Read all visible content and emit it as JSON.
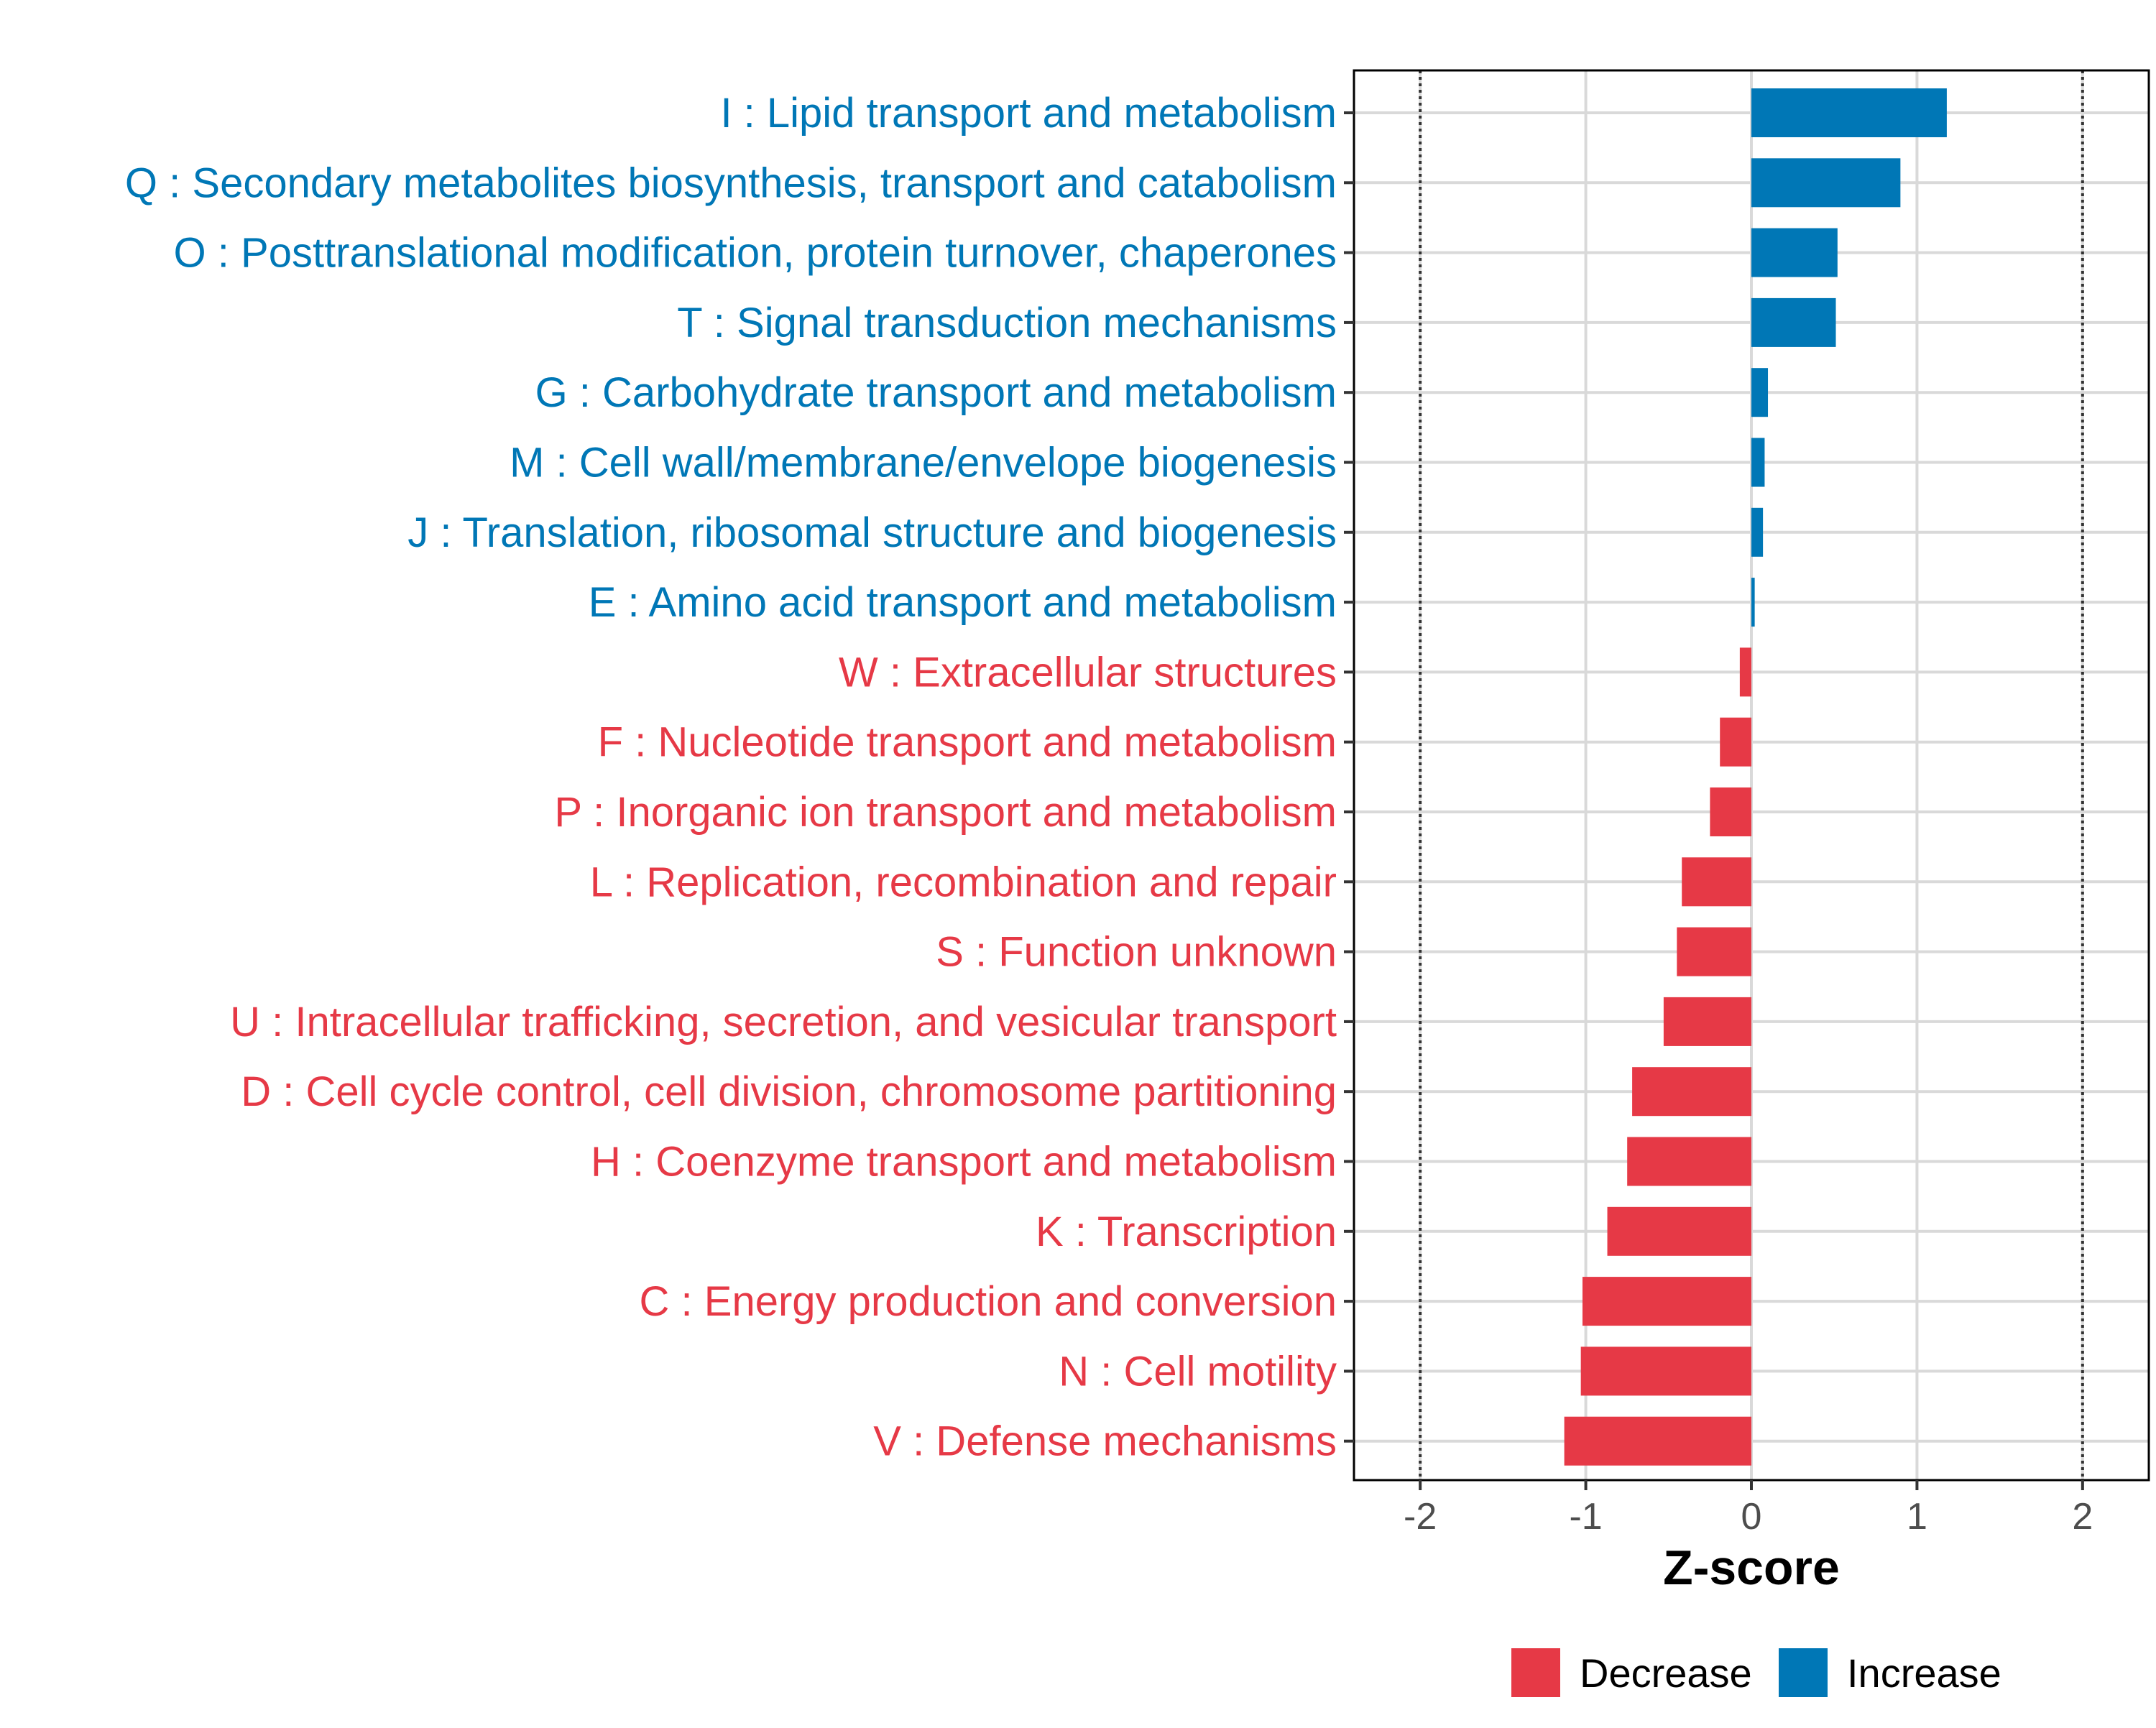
{
  "chart_data": {
    "type": "bar",
    "orientation": "horizontal",
    "xlabel": "Z-score",
    "xlim": [
      -2.4,
      2.4
    ],
    "xticks": [
      -2,
      -1,
      0,
      1,
      2
    ],
    "xtick_labels": [
      "-2",
      "-1",
      "0",
      "1",
      "2"
    ],
    "reference_lines": [
      -2,
      2
    ],
    "grid": true,
    "legend_position": "bottom-right",
    "legend": [
      {
        "name": "Decrease",
        "color": "#E63946"
      },
      {
        "name": "Increase",
        "color": "#0077B6"
      }
    ],
    "categories": [
      "I : Lipid transport and metabolism",
      "Q : Secondary metabolites biosynthesis, transport and catabolism",
      "O : Posttranslational modification, protein turnover, chaperones",
      "T : Signal transduction mechanisms",
      "G : Carbohydrate transport and metabolism",
      "M : Cell wall/membrane/envelope biogenesis",
      "J : Translation, ribosomal structure and biogenesis",
      "E : Amino acid transport and metabolism",
      "W : Extracellular structures",
      "F : Nucleotide transport and metabolism",
      "P : Inorganic ion transport and metabolism",
      "L : Replication, recombination and repair",
      "S : Function unknown",
      "U : Intracellular trafficking, secretion, and vesicular transport",
      "D : Cell cycle control, cell division, chromosome partitioning",
      "H : Coenzyme transport and metabolism",
      "K : Transcription",
      "C : Energy production and conversion",
      "N : Cell motility",
      "V : Defense mechanisms"
    ],
    "values": [
      1.18,
      0.9,
      0.52,
      0.51,
      0.1,
      0.08,
      0.07,
      0.02,
      -0.07,
      -0.19,
      -0.25,
      -0.42,
      -0.45,
      -0.53,
      -0.72,
      -0.75,
      -0.87,
      -1.02,
      -1.03,
      -1.13
    ],
    "groups": [
      "Increase",
      "Increase",
      "Increase",
      "Increase",
      "Increase",
      "Increase",
      "Increase",
      "Increase",
      "Decrease",
      "Decrease",
      "Decrease",
      "Decrease",
      "Decrease",
      "Decrease",
      "Decrease",
      "Decrease",
      "Decrease",
      "Decrease",
      "Decrease",
      "Decrease"
    ]
  }
}
